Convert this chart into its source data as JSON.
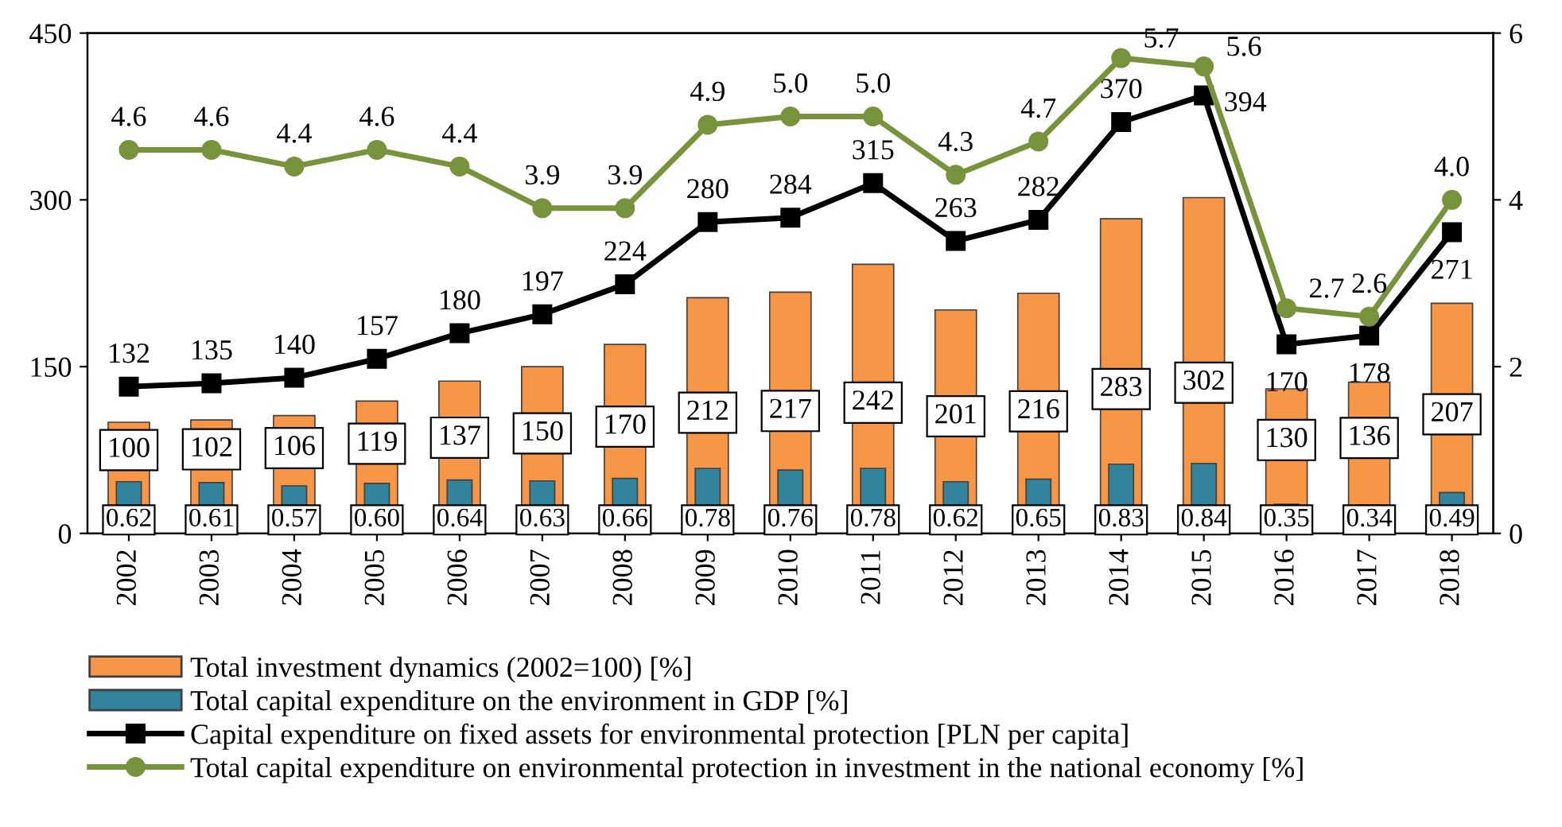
{
  "chart_data": {
    "type": "bar",
    "categories": [
      "2002",
      "2003",
      "2004",
      "2005",
      "2006",
      "2007",
      "2008",
      "2009",
      "2010",
      "2011",
      "2012",
      "2013",
      "2014",
      "2015",
      "2016",
      "2017",
      "2018"
    ],
    "series": [
      {
        "name": "Total investment dynamics (2002=100) [%]",
        "color": "#f79646",
        "values": [
          100,
          102,
          106,
          119,
          137,
          150,
          170,
          212,
          217,
          242,
          201,
          216,
          283,
          302,
          130,
          136,
          207
        ],
        "value_labels": [
          "100",
          "102",
          "106",
          "119",
          "137",
          "150",
          "170",
          "212",
          "217",
          "242",
          "201",
          "216",
          "283",
          "302",
          "130",
          "136",
          "207"
        ]
      },
      {
        "name": "Total capital expenditure on the environment in GDP [%]",
        "axis": "y2",
        "color": "#31849b",
        "values": [
          0.62,
          0.61,
          0.57,
          0.6,
          0.64,
          0.63,
          0.66,
          0.78,
          0.76,
          0.78,
          0.62,
          0.65,
          0.83,
          0.84,
          0.35,
          0.34,
          0.49
        ],
        "value_labels": [
          "0.62",
          "0.61",
          "0.57",
          "0.60",
          "0.64",
          "0.63",
          "0.66",
          "0.78",
          "0.76",
          "0.78",
          "0.62",
          "0.65",
          "0.83",
          "0.84",
          "0.35",
          "0.34",
          "0.49"
        ]
      },
      {
        "name": "Capital expenditure on fixed assets for environmental protection [PLN per capita]",
        "type": "line",
        "color": "#000000",
        "marker": "square",
        "values": [
          132,
          135,
          140,
          157,
          180,
          197,
          224,
          280,
          284,
          315,
          263,
          282,
          370,
          394,
          170,
          178,
          271
        ],
        "value_labels": [
          "132",
          "135",
          "140",
          "157",
          "180",
          "197",
          "224",
          "280",
          "284",
          "315",
          "263",
          "282",
          "370",
          "394",
          "170",
          "178",
          "271"
        ]
      },
      {
        "name": "Total capital expenditure on environmental protection in investment in the national economy [%]",
        "type": "line",
        "axis": "y2",
        "color": "#77933c",
        "marker": "circle",
        "values": [
          4.6,
          4.6,
          4.4,
          4.6,
          4.4,
          3.9,
          3.9,
          4.9,
          5.0,
          5.0,
          4.3,
          4.7,
          5.7,
          5.6,
          2.7,
          2.6,
          4.0
        ],
        "value_labels": [
          "4.6",
          "4.6",
          "4.4",
          "4.6",
          "4.4",
          "3.9",
          "3.9",
          "4.9",
          "5.0",
          "5.0",
          "4.3",
          "4.7",
          "5.7",
          "5.6",
          "2.7",
          "2.6",
          "4.0"
        ]
      }
    ],
    "ylim": [
      0,
      450
    ],
    "yticks": [
      0,
      150,
      300,
      450
    ],
    "y2lim": [
      0,
      6
    ],
    "y2ticks": [
      0,
      2,
      4,
      6
    ],
    "grid": false,
    "legend": "bottom"
  }
}
